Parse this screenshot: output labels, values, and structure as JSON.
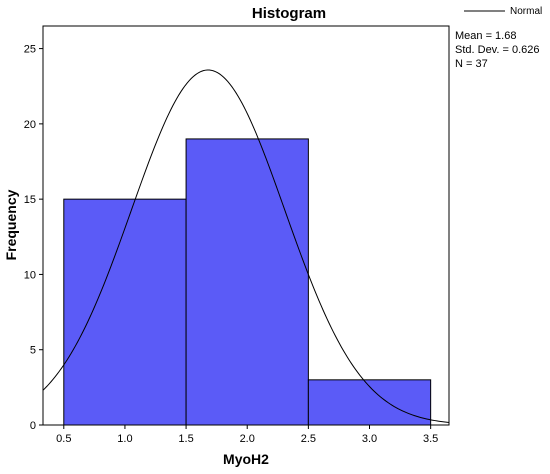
{
  "chart_data": {
    "type": "histogram",
    "title": "Histogram",
    "xlabel": "MyoH2",
    "ylabel": "Frequency",
    "xlim": [
      0.33,
      3.65
    ],
    "ylim": [
      0,
      26.5
    ],
    "xticks": [
      0.5,
      1.0,
      1.5,
      2.0,
      2.5,
      3.0,
      3.5
    ],
    "xtick_labels": [
      "0.5",
      "1.0",
      "1.5",
      "2.0",
      "2.5",
      "3.0",
      "3.5"
    ],
    "yticks": [
      0,
      5,
      10,
      15,
      20,
      25
    ],
    "ytick_labels": [
      "0",
      "5",
      "10",
      "15",
      "20",
      "25"
    ],
    "bins": [
      {
        "start": 0.5,
        "end": 1.5,
        "count": 15
      },
      {
        "start": 1.5,
        "end": 2.5,
        "count": 19
      },
      {
        "start": 2.5,
        "end": 3.5,
        "count": 3
      }
    ],
    "bar_color": "#5b5bf7",
    "bar_edge_color": "#000000",
    "normal_curve": {
      "mean": 1.68,
      "std": 0.626,
      "n": 37,
      "bin_width": 1.0,
      "color": "#000000"
    },
    "stats": {
      "mean": "Mean = 1.68",
      "std": "Std. Dev. = 0.626",
      "n": "N = 37"
    },
    "legend": {
      "label": "Normal",
      "position": "top-right"
    },
    "grid": false
  }
}
